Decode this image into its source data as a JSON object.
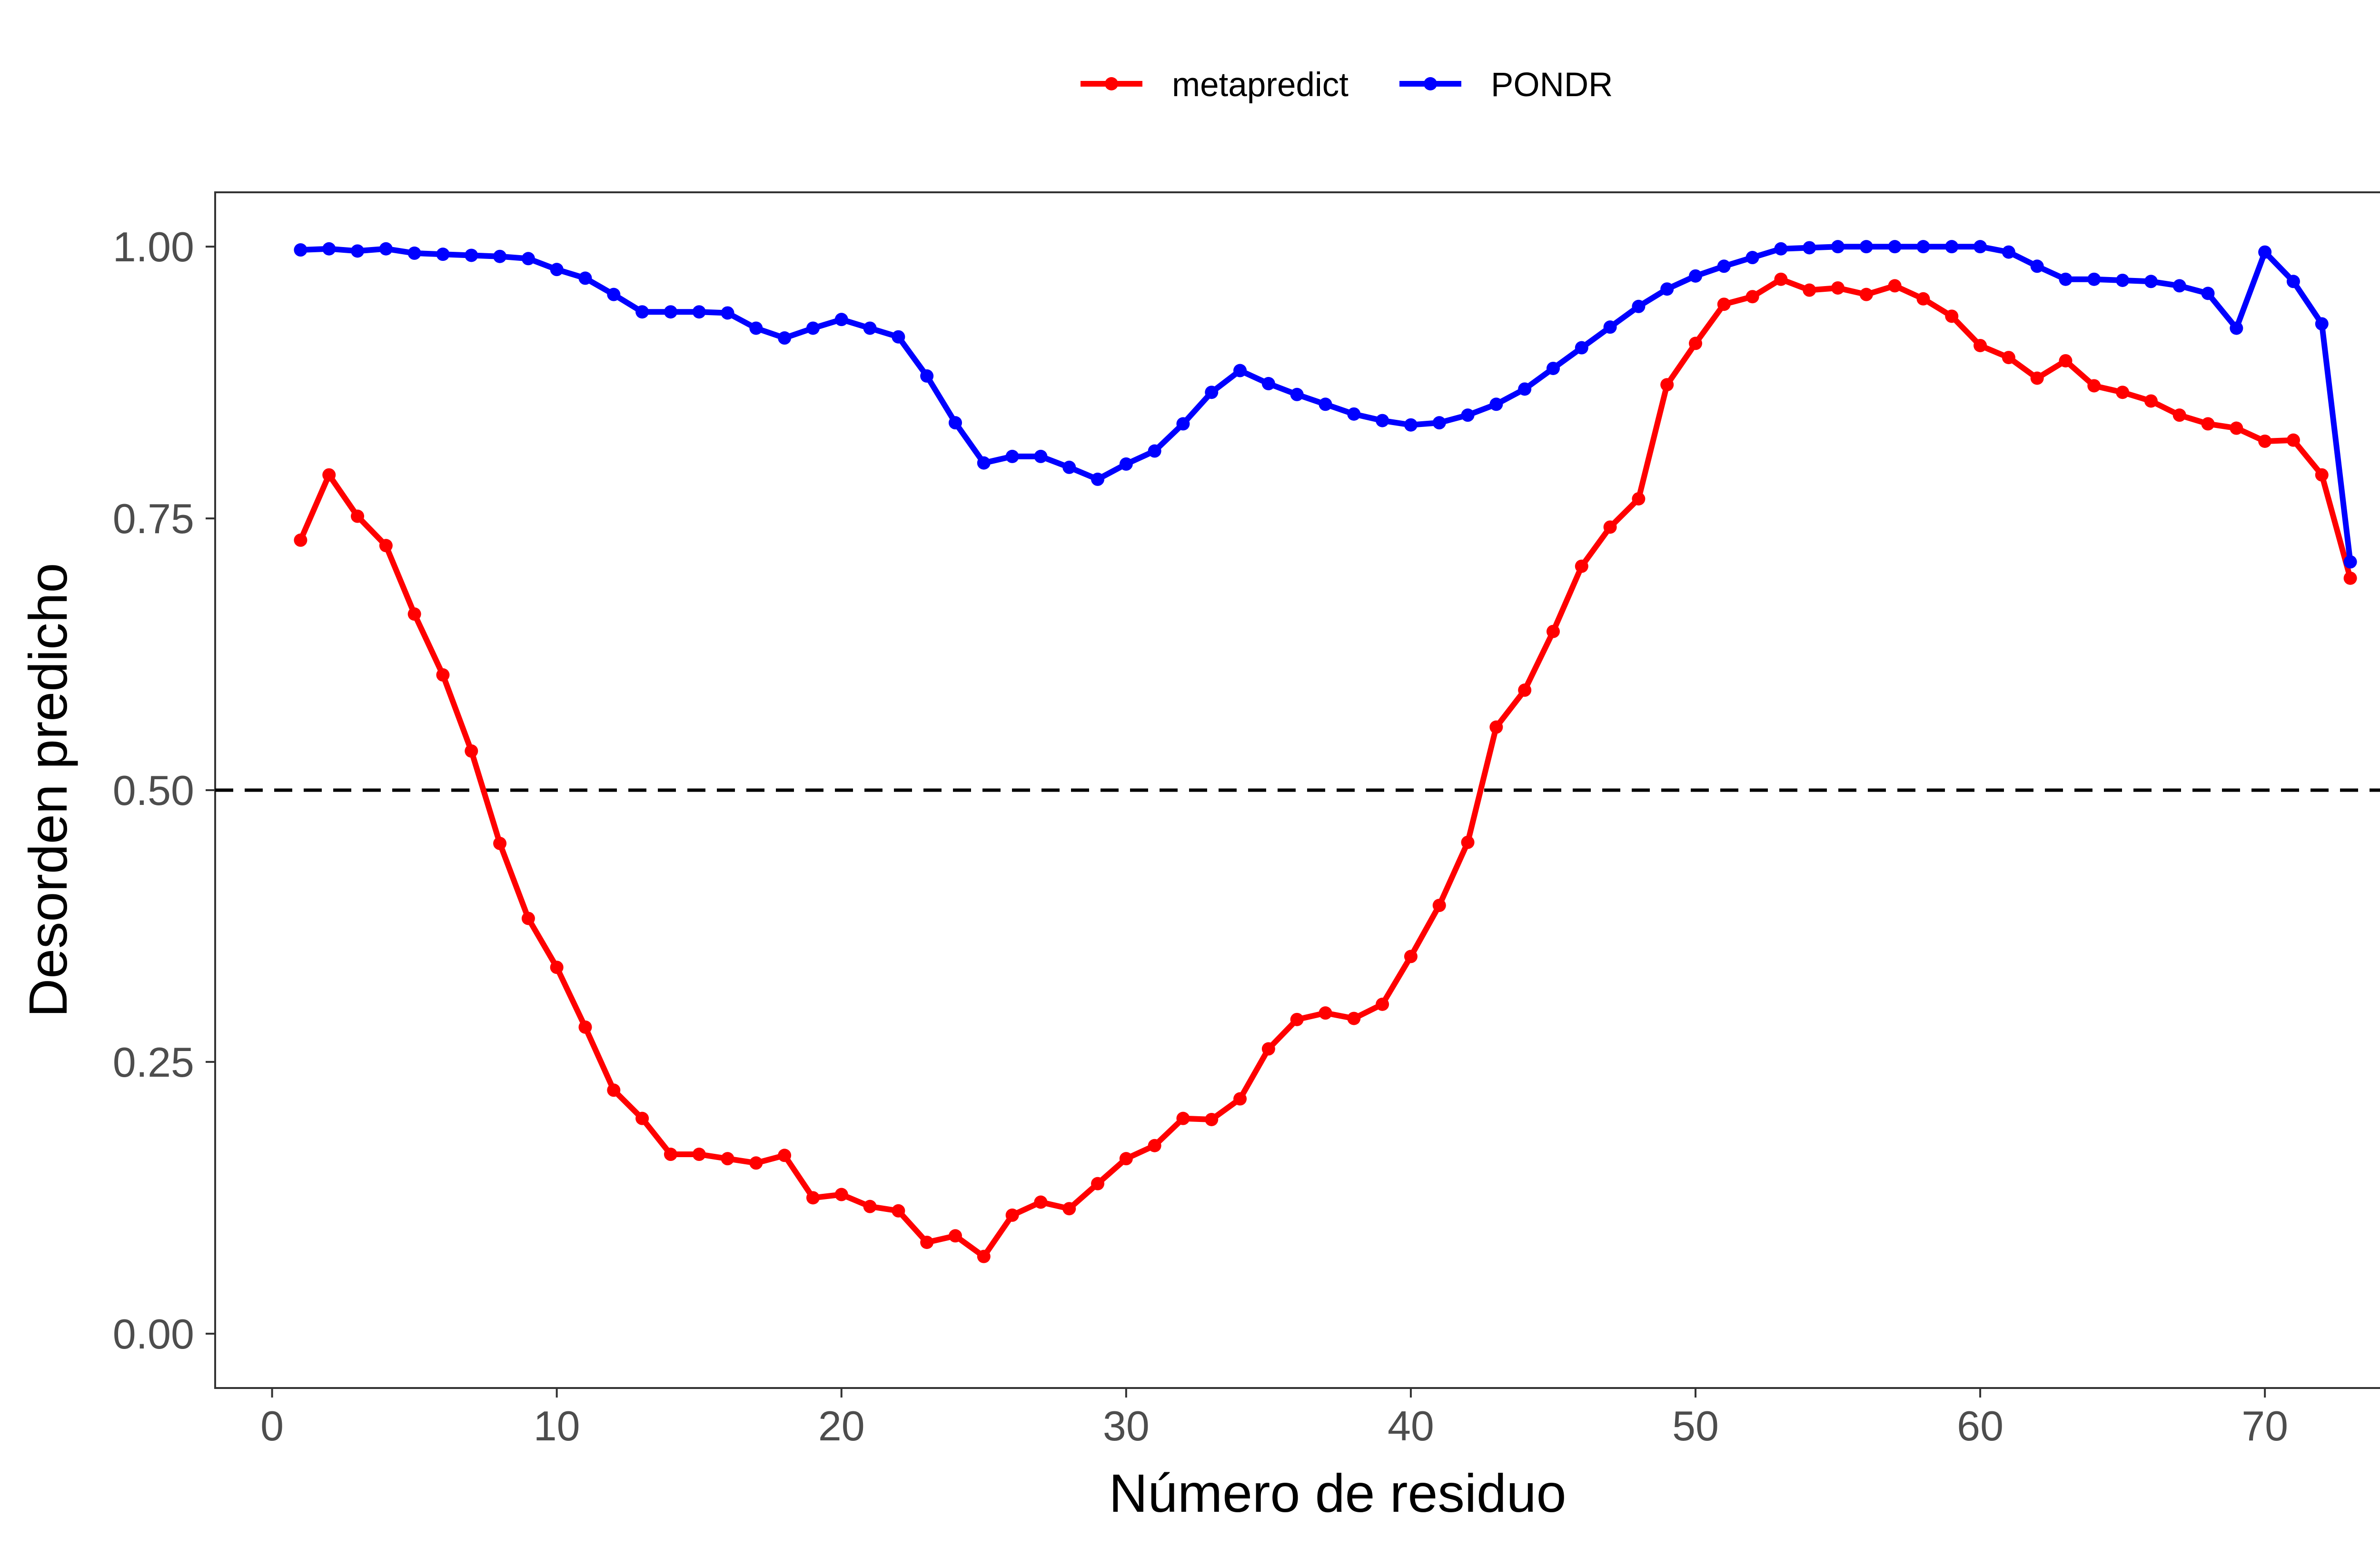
{
  "chart_data": {
    "type": "line",
    "title": "",
    "xlabel": "Número de residuo",
    "ylabel": "Desorden predicho",
    "xlim": [
      -2,
      76
    ],
    "ylim": [
      -0.05,
      1.05
    ],
    "xticks": [
      0,
      10,
      20,
      30,
      40,
      50,
      60,
      70
    ],
    "xtick_labels": [
      "0",
      "10",
      "20",
      "30",
      "40",
      "50",
      "60",
      "70"
    ],
    "yticks": [
      0,
      0.25,
      0.5,
      0.75,
      1.0
    ],
    "ytick_labels": [
      "0.00",
      "0.25",
      "0.50",
      "0.75",
      "1.00"
    ],
    "grid": false,
    "legend_position": "top",
    "reference_line": {
      "y": 0.5,
      "style": "dashed",
      "color": "#000000"
    },
    "x": [
      1,
      2,
      3,
      4,
      5,
      6,
      7,
      8,
      9,
      10,
      11,
      12,
      13,
      14,
      15,
      16,
      17,
      18,
      19,
      20,
      21,
      22,
      23,
      24,
      25,
      26,
      27,
      28,
      29,
      30,
      31,
      32,
      33,
      34,
      35,
      36,
      37,
      38,
      39,
      40,
      41,
      42,
      43,
      44,
      45,
      46,
      47,
      48,
      49,
      50,
      51,
      52,
      53,
      54,
      55,
      56,
      57,
      58,
      59,
      60,
      61,
      62,
      63,
      64,
      65,
      66,
      67,
      68,
      69,
      70,
      71,
      72,
      73
    ],
    "series": [
      {
        "name": "metapredict",
        "color": "#ff0000",
        "values": [
          0.73,
          0.79,
          0.752,
          0.725,
          0.662,
          0.606,
          0.536,
          0.451,
          0.382,
          0.337,
          0.282,
          0.224,
          0.198,
          0.165,
          0.165,
          0.161,
          0.157,
          0.164,
          0.125,
          0.128,
          0.117,
          0.113,
          0.084,
          0.09,
          0.071,
          0.109,
          0.121,
          0.115,
          0.138,
          0.161,
          0.173,
          0.198,
          0.197,
          0.216,
          0.262,
          0.289,
          0.295,
          0.29,
          0.303,
          0.347,
          0.394,
          0.452,
          0.558,
          0.592,
          0.646,
          0.706,
          0.742,
          0.768,
          0.873,
          0.911,
          0.947,
          0.954,
          0.97,
          0.96,
          0.962,
          0.956,
          0.964,
          0.952,
          0.936,
          0.909,
          0.898,
          0.879,
          0.895,
          0.872,
          0.866,
          0.858,
          0.845,
          0.837,
          0.833,
          0.821,
          0.822,
          0.79,
          0.695
        ]
      },
      {
        "name": "PONDR",
        "color": "#0000ff",
        "values": [
          0.997,
          0.998,
          0.996,
          0.998,
          0.994,
          0.993,
          0.992,
          0.991,
          0.989,
          0.979,
          0.971,
          0.956,
          0.94,
          0.94,
          0.94,
          0.939,
          0.925,
          0.916,
          0.925,
          0.933,
          0.925,
          0.917,
          0.881,
          0.838,
          0.801,
          0.807,
          0.807,
          0.797,
          0.786,
          0.8,
          0.812,
          0.837,
          0.866,
          0.886,
          0.874,
          0.864,
          0.855,
          0.846,
          0.84,
          0.836,
          0.838,
          0.845,
          0.855,
          0.869,
          0.888,
          0.907,
          0.926,
          0.945,
          0.961,
          0.973,
          0.982,
          0.99,
          0.998,
          0.999,
          1.0,
          1.0,
          1.0,
          1.0,
          1.0,
          1.0,
          0.995,
          0.982,
          0.97,
          0.97,
          0.969,
          0.968,
          0.964,
          0.957,
          0.925,
          0.995,
          0.968,
          0.929,
          0.71
        ]
      }
    ]
  }
}
